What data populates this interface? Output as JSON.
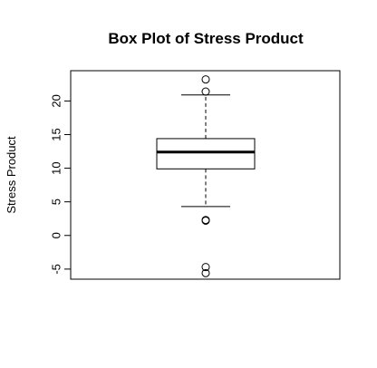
{
  "chart_data": {
    "type": "box",
    "title": "Box Plot of Stress Product",
    "ylabel": "Stress Product",
    "xlabel": "",
    "ylim": [
      -6.5,
      24.5
    ],
    "yticks": [
      -5,
      0,
      5,
      10,
      15,
      20
    ],
    "ytick_labels": [
      "-5",
      "0",
      "5",
      "10",
      "15",
      "20"
    ],
    "box": {
      "lower_whisker": 4.3,
      "q1": 9.9,
      "median": 12.4,
      "q3": 14.4,
      "upper_whisker": 20.9
    },
    "outliers": [
      23.2,
      21.4,
      2.3,
      2.2,
      -4.7,
      -5.6
    ],
    "grid": false,
    "colors": {
      "stroke": "#000000",
      "background": "#ffffff"
    }
  }
}
